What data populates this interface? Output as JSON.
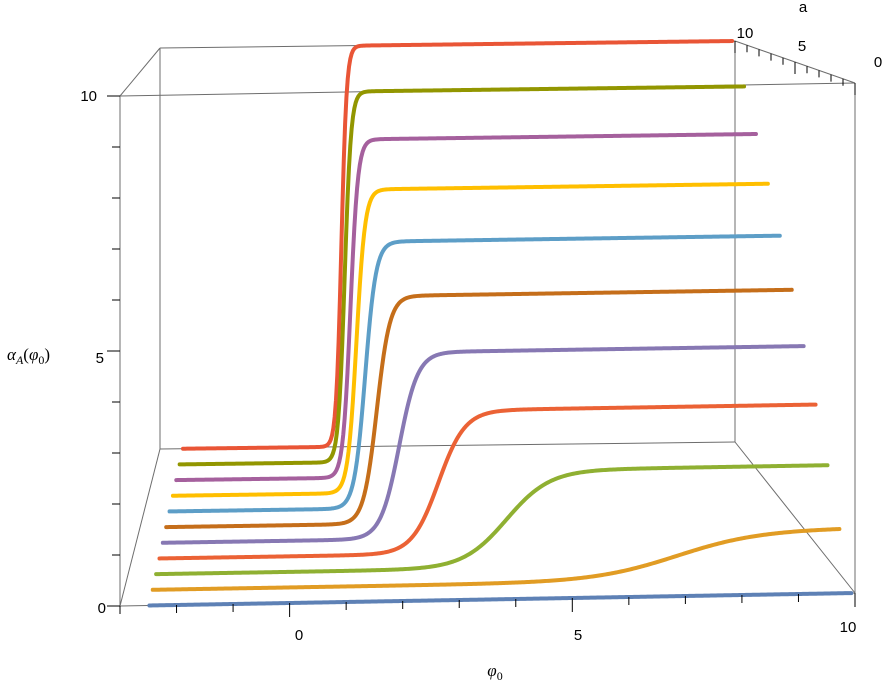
{
  "chart_data": {
    "type": "line",
    "title": "",
    "xlabel": "φ0",
    "ylabel": "a",
    "zlabel": "αA(φ0)",
    "x_ticks": [
      "0",
      "5",
      "10"
    ],
    "y_ticks": [
      "10",
      "5",
      "0"
    ],
    "z_ticks": [
      "10",
      "5",
      "0"
    ],
    "xlim": [
      -3,
      10
    ],
    "ylim": [
      0,
      10
    ],
    "zlim": [
      0,
      10
    ],
    "grid": false,
    "legend": "none",
    "curve_model": "logistic",
    "series": [
      {
        "a": 0,
        "x_mid": 16.0,
        "width": 4.0,
        "color": "#5e81b5"
      },
      {
        "a": 1,
        "x_mid": 7.0,
        "width": 0.75,
        "color": "#e19c24"
      },
      {
        "a": 2,
        "x_mid": 4.0,
        "width": 0.4,
        "color": "#8fb032"
      },
      {
        "a": 3,
        "x_mid": 2.8,
        "width": 0.25,
        "color": "#eb6235"
      },
      {
        "a": 4,
        "x_mid": 2.1,
        "width": 0.18,
        "color": "#8778b3"
      },
      {
        "a": 5,
        "x_mid": 1.7,
        "width": 0.13,
        "color": "#c56e1a"
      },
      {
        "a": 6,
        "x_mid": 1.5,
        "width": 0.11,
        "color": "#5d9ec7"
      },
      {
        "a": 7,
        "x_mid": 1.35,
        "width": 0.09,
        "color": "#ffbf00"
      },
      {
        "a": 8,
        "x_mid": 1.25,
        "width": 0.08,
        "color": "#a5609d"
      },
      {
        "a": 9,
        "x_mid": 1.15,
        "width": 0.07,
        "color": "#929600"
      },
      {
        "a": 10,
        "x_mid": 1.1,
        "width": 0.06,
        "color": "#e95536"
      }
    ]
  }
}
